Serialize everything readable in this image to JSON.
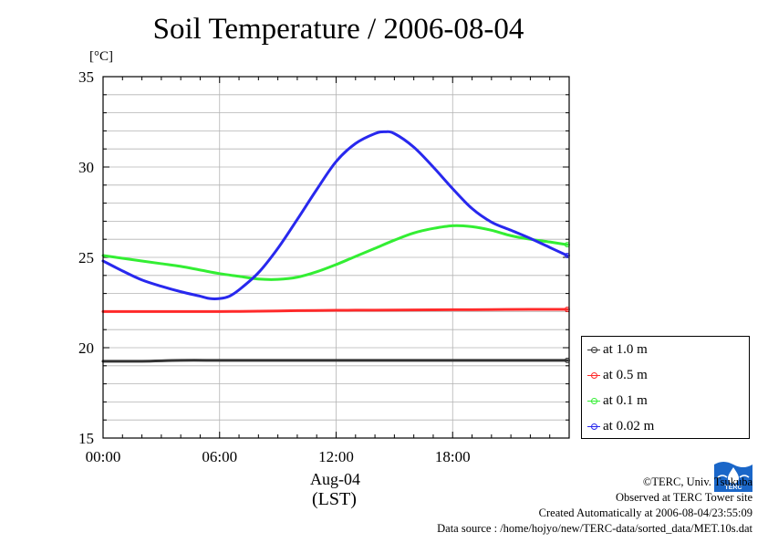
{
  "header": {
    "title": "Soil Temperature / 2006-08-04",
    "unit": "[°C]"
  },
  "footer": {
    "date": "Aug-04",
    "timezone": "(LST)",
    "copyright": "©TERC, Univ. Tsukuba",
    "site": "Observed at TERC Tower site",
    "created": "Created Automatically at 2006-08-04/23:55:09",
    "source": "Data source : /home/hojyo/new/TERC-data/sorted_data/MET.10s.dat"
  },
  "logo": {
    "text": "TERC",
    "color": "#1a66c8"
  },
  "legend": [
    {
      "label": "at 1.0 m",
      "color": "#333333"
    },
    {
      "label": "at 0.5 m",
      "color": "#ff2a2a"
    },
    {
      "label": "at 0.1 m",
      "color": "#33ee33"
    },
    {
      "label": "at 0.02 m",
      "color": "#2828ee"
    }
  ],
  "chart_data": {
    "type": "line",
    "title": "Soil Temperature / 2006-08-04",
    "ylabel": "[°C]",
    "xlabel": "Aug-04 (LST)",
    "xlim": [
      0,
      24
    ],
    "ylim": [
      15,
      35
    ],
    "x_ticks": [
      {
        "value": 0,
        "label": "00:00"
      },
      {
        "value": 6,
        "label": "06:00"
      },
      {
        "value": 12,
        "label": "12:00"
      },
      {
        "value": 18,
        "label": "18:00"
      }
    ],
    "y_ticks": [
      15,
      20,
      25,
      30,
      35
    ],
    "grid": true,
    "legend_position": "right",
    "series": [
      {
        "name": "at 1.0 m",
        "color": "#333333",
        "x": [
          0,
          2,
          4,
          6,
          8,
          10,
          12,
          14,
          16,
          18,
          20,
          22,
          23.9
        ],
        "y": [
          19.25,
          19.25,
          19.3,
          19.3,
          19.3,
          19.3,
          19.3,
          19.3,
          19.3,
          19.3,
          19.3,
          19.3,
          19.3
        ]
      },
      {
        "name": "at 0.5 m",
        "color": "#ff2a2a",
        "x": [
          0,
          2,
          4,
          6,
          8,
          10,
          12,
          14,
          16,
          18,
          20,
          22,
          23.9
        ],
        "y": [
          22.0,
          22.0,
          22.0,
          22.0,
          22.02,
          22.05,
          22.07,
          22.08,
          22.09,
          22.1,
          22.11,
          22.12,
          22.12
        ]
      },
      {
        "name": "at 0.1 m",
        "color": "#33ee33",
        "x": [
          0,
          1,
          2,
          3,
          4,
          5,
          6,
          7,
          8,
          9,
          10,
          11,
          12,
          13,
          14,
          15,
          16,
          17,
          18,
          19,
          20,
          21,
          22,
          23,
          23.9
        ],
        "y": [
          25.1,
          24.95,
          24.8,
          24.65,
          24.5,
          24.3,
          24.1,
          23.95,
          23.8,
          23.78,
          23.9,
          24.2,
          24.6,
          25.05,
          25.5,
          25.95,
          26.35,
          26.6,
          26.75,
          26.7,
          26.5,
          26.2,
          26.0,
          25.85,
          25.7
        ]
      },
      {
        "name": "at 0.02 m",
        "color": "#2828ee",
        "x": [
          0,
          1,
          2,
          3,
          4,
          5,
          5.5,
          6,
          6.5,
          7,
          8,
          9,
          10,
          11,
          12,
          13,
          14,
          14.5,
          15,
          16,
          17,
          18,
          19,
          20,
          21,
          22,
          23,
          23.9
        ],
        "y": [
          24.8,
          24.25,
          23.75,
          23.4,
          23.1,
          22.85,
          22.72,
          22.72,
          22.85,
          23.2,
          24.15,
          25.5,
          27.1,
          28.75,
          30.3,
          31.3,
          31.85,
          31.95,
          31.85,
          31.1,
          30.0,
          28.8,
          27.7,
          26.95,
          26.5,
          26.05,
          25.55,
          25.1
        ]
      }
    ]
  }
}
